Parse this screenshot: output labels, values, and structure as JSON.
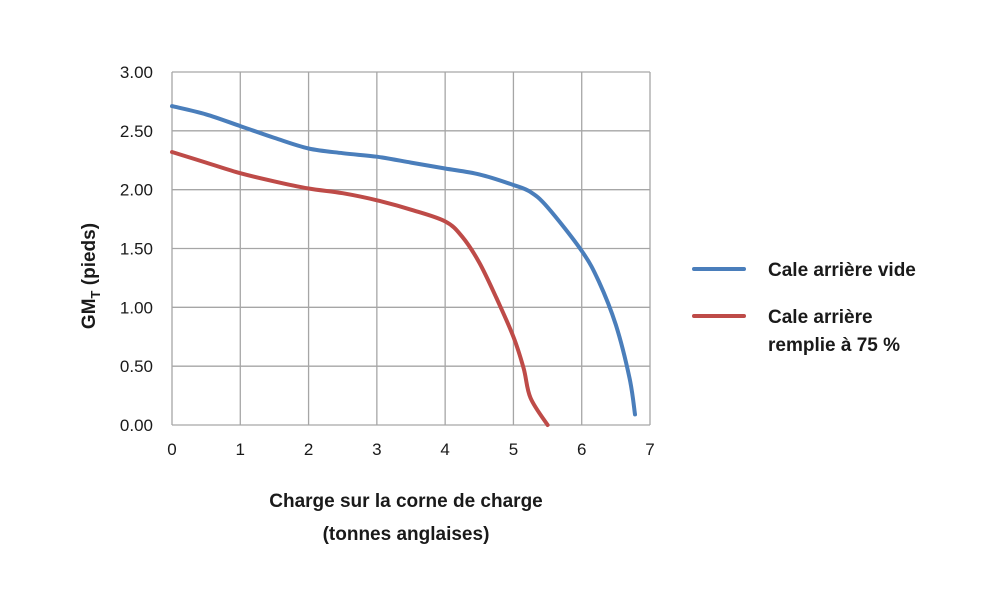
{
  "chart_data": {
    "type": "line",
    "title": "",
    "xlabel_lines": [
      "Charge sur la corne de charge",
      "(tonnes anglaises)"
    ],
    "ylabel": {
      "main": "GM",
      "sub": "T",
      "rest": " (pieds)"
    },
    "xlim": [
      0,
      7
    ],
    "ylim": [
      0,
      3
    ],
    "x_ticks": [
      0,
      1,
      2,
      3,
      4,
      5,
      6,
      7
    ],
    "x_tick_labels": [
      "0",
      "1",
      "2",
      "3",
      "4",
      "5",
      "6",
      "7"
    ],
    "y_ticks": [
      0,
      0.5,
      1,
      1.5,
      2,
      2.5,
      3
    ],
    "y_tick_labels": [
      "0.00",
      "0.50",
      "1.00",
      "1.50",
      "2.00",
      "2.50",
      "3.00"
    ],
    "grid": true,
    "legend_position": "right",
    "series": [
      {
        "name_lines": [
          "Cale arrière vide"
        ],
        "color": "#4a7ebb",
        "x": [
          0,
          0.5,
          1,
          1.5,
          2,
          2.5,
          3,
          3.5,
          4,
          4.5,
          5,
          5.25,
          5.5,
          6,
          6.25,
          6.5,
          6.7,
          6.78
        ],
        "y": [
          2.71,
          2.64,
          2.54,
          2.44,
          2.35,
          2.31,
          2.28,
          2.23,
          2.18,
          2.13,
          2.04,
          1.98,
          1.85,
          1.48,
          1.22,
          0.85,
          0.4,
          0.09
        ]
      },
      {
        "name_lines": [
          "Cale arrière",
          "remplie à 75 %"
        ],
        "color": "#be4b48",
        "x": [
          0,
          0.5,
          1,
          1.5,
          2,
          2.5,
          3,
          3.5,
          4,
          4.25,
          4.5,
          4.75,
          5,
          5.15,
          5.25,
          5.5
        ],
        "y": [
          2.32,
          2.23,
          2.14,
          2.07,
          2.01,
          1.97,
          1.91,
          1.83,
          1.73,
          1.6,
          1.38,
          1.08,
          0.75,
          0.48,
          0.23,
          0.0
        ]
      }
    ]
  }
}
